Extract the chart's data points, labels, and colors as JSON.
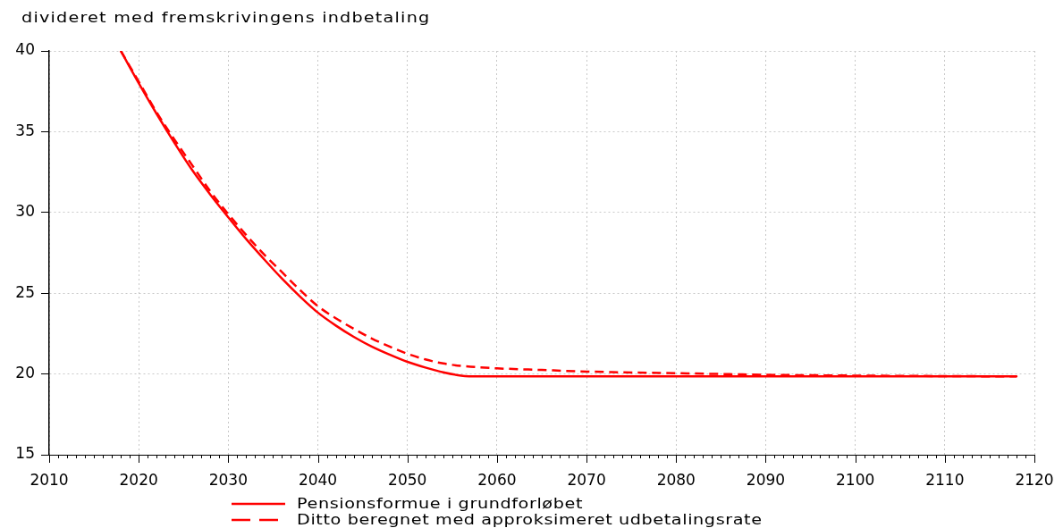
{
  "chart_data": {
    "type": "line",
    "ylabel": "divideret med fremskrivingens indbetaling",
    "xlim": [
      2010,
      2120
    ],
    "xticks": [
      2010,
      {
        "value": 2011,
        "label": null
      },
      {
        "value": 2012,
        "label": null
      },
      {
        "value": 2013,
        "label": null
      },
      {
        "value": 2014,
        "label": null
      },
      {
        "value": 2015,
        "label": null
      },
      {
        "value": 2016,
        "label": null
      },
      {
        "value": 2017,
        "label": null
      },
      {
        "value": 2018,
        "label": null
      },
      {
        "value": 2019,
        "label": null
      },
      2020,
      {
        "value": 2021,
        "label": null
      },
      {
        "value": 2022,
        "label": null
      },
      {
        "value": 2023,
        "label": null
      },
      {
        "value": 2024,
        "label": null
      },
      {
        "value": 2025,
        "label": null
      },
      {
        "value": 2026,
        "label": null
      },
      {
        "value": 2027,
        "label": null
      },
      {
        "value": 2028,
        "label": null
      },
      {
        "value": 2029,
        "label": null
      },
      2030,
      {
        "value": 2031,
        "label": null
      },
      {
        "value": 2032,
        "label": null
      },
      {
        "value": 2033,
        "label": null
      },
      {
        "value": 2034,
        "label": null
      },
      {
        "value": 2035,
        "label": null
      },
      {
        "value": 2036,
        "label": null
      },
      {
        "value": 2037,
        "label": null
      },
      {
        "value": 2038,
        "label": null
      },
      {
        "value": 2039,
        "label": null
      },
      2040,
      {
        "value": 2041,
        "label": null
      },
      {
        "value": 2042,
        "label": null
      },
      {
        "value": 2043,
        "label": null
      },
      {
        "value": 2044,
        "label": null
      },
      {
        "value": 2045,
        "label": null
      },
      {
        "value": 2046,
        "label": null
      },
      {
        "value": 2047,
        "label": null
      },
      {
        "value": 2048,
        "label": null
      },
      {
        "value": 2049,
        "label": null
      },
      2050,
      {
        "value": 2051,
        "label": null
      },
      {
        "value": 2052,
        "label": null
      },
      {
        "value": 2053,
        "label": null
      },
      {
        "value": 2054,
        "label": null
      },
      {
        "value": 2055,
        "label": null
      },
      {
        "value": 2056,
        "label": null
      },
      {
        "value": 2057,
        "label": null
      },
      {
        "value": 2058,
        "label": null
      },
      {
        "value": 2059,
        "label": null
      },
      2060,
      {
        "value": 2061,
        "label": null
      },
      {
        "value": 2062,
        "label": null
      },
      {
        "value": 2063,
        "label": null
      },
      {
        "value": 2064,
        "label": null
      },
      {
        "value": 2065,
        "label": null
      },
      {
        "value": 2066,
        "label": null
      },
      {
        "value": 2067,
        "label": null
      },
      {
        "value": 2068,
        "label": null
      },
      {
        "value": 2069,
        "label": null
      },
      2070,
      {
        "value": 2071,
        "label": null
      },
      {
        "value": 2072,
        "label": null
      },
      {
        "value": 2073,
        "label": null
      },
      {
        "value": 2074,
        "label": null
      },
      {
        "value": 2075,
        "label": null
      },
      {
        "value": 2076,
        "label": null
      },
      {
        "value": 2077,
        "label": null
      },
      {
        "value": 2078,
        "label": null
      },
      {
        "value": 2079,
        "label": null
      },
      2080,
      {
        "value": 2081,
        "label": null
      },
      {
        "value": 2082,
        "label": null
      },
      {
        "value": 2083,
        "label": null
      },
      {
        "value": 2084,
        "label": null
      },
      {
        "value": 2085,
        "label": null
      },
      {
        "value": 2086,
        "label": null
      },
      {
        "value": 2087,
        "label": null
      },
      {
        "value": 2088,
        "label": null
      },
      {
        "value": 2089,
        "label": null
      },
      2090,
      {
        "value": 2091,
        "label": null
      },
      {
        "value": 2092,
        "label": null
      },
      {
        "value": 2093,
        "label": null
      },
      {
        "value": 2094,
        "label": null
      },
      {
        "value": 2095,
        "label": null
      },
      {
        "value": 2096,
        "label": null
      },
      {
        "value": 2097,
        "label": null
      },
      {
        "value": 2098,
        "label": null
      },
      {
        "value": 2099,
        "label": null
      },
      2100,
      {
        "value": 2101,
        "label": null
      },
      {
        "value": 2102,
        "label": null
      },
      {
        "value": 2103,
        "label": null
      },
      {
        "value": 2104,
        "label": null
      },
      {
        "value": 2105,
        "label": null
      },
      {
        "value": 2106,
        "label": null
      },
      {
        "value": 2107,
        "label": null
      },
      {
        "value": 2108,
        "label": null
      },
      {
        "value": 2109,
        "label": null
      },
      2110,
      {
        "value": 2111,
        "label": null
      },
      {
        "value": 2112,
        "label": null
      },
      {
        "value": 2113,
        "label": null
      },
      {
        "value": 2114,
        "label": null
      },
      {
        "value": 2115,
        "label": null
      },
      {
        "value": 2116,
        "label": null
      },
      {
        "value": 2117,
        "label": null
      },
      {
        "value": 2118,
        "label": null
      },
      {
        "value": 2119,
        "label": null
      },
      2120
    ],
    "ylim": [
      15,
      40
    ],
    "yticks": [
      15,
      20,
      25,
      30,
      35,
      40
    ],
    "grid": true,
    "legend": "bottom",
    "marker": "none",
    "series": [
      {
        "name": "Pensionsformue i grundforløbet",
        "color": "#ff0000",
        "line_style": "solid",
        "x": [
          2018,
          2020,
          2022,
          2024,
          2026,
          2028,
          2030,
          2032,
          2034,
          2036,
          2038,
          2040,
          2042,
          2044,
          2046,
          2048,
          2050,
          2052,
          2054,
          2056,
          2058,
          2118
        ],
        "values": [
          40,
          38.0,
          36.1,
          34.3,
          32.6,
          31.1,
          29.7,
          28.35,
          27.1,
          25.9,
          24.8,
          23.8,
          23.0,
          22.3,
          21.7,
          21.2,
          20.75,
          20.4,
          20.1,
          19.9,
          19.85,
          19.85
        ]
      },
      {
        "name": "Ditto beregnet med approksimeret udbetalingsrate",
        "color": "#ff0000",
        "line_style": "dashed",
        "x": [
          2018,
          2020,
          2022,
          2024,
          2026,
          2028,
          2030,
          2032,
          2034,
          2036,
          2038,
          2040,
          2042,
          2044,
          2046,
          2048,
          2050,
          2052,
          2054,
          2056,
          2060,
          2065,
          2070,
          2080,
          2090,
          2100,
          2118
        ],
        "values": [
          40,
          38.1,
          36.2,
          34.5,
          32.9,
          31.3,
          29.9,
          28.6,
          27.4,
          26.3,
          25.2,
          24.2,
          23.45,
          22.8,
          22.2,
          21.7,
          21.25,
          20.9,
          20.65,
          20.5,
          20.35,
          20.25,
          20.15,
          20.05,
          19.95,
          19.9,
          19.85
        ]
      }
    ]
  }
}
